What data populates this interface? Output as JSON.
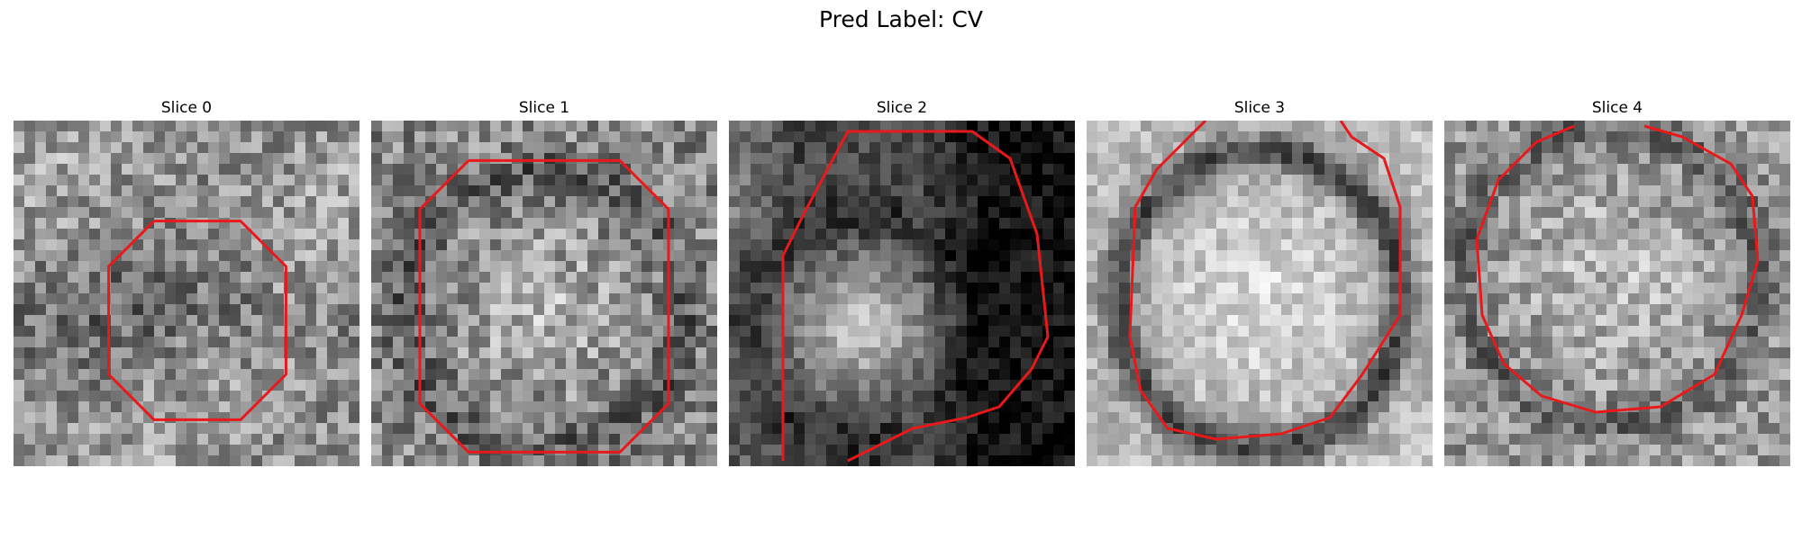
{
  "figure": {
    "title": "Pred Label: CV"
  },
  "panels": [
    {
      "title": "Slice 0"
    },
    {
      "title": "Slice 1"
    },
    {
      "title": "Slice 2"
    },
    {
      "title": "Slice 3"
    },
    {
      "title": "Slice 4"
    }
  ],
  "colors": {
    "contour": "#e8191b",
    "background": "#ffffff"
  }
}
